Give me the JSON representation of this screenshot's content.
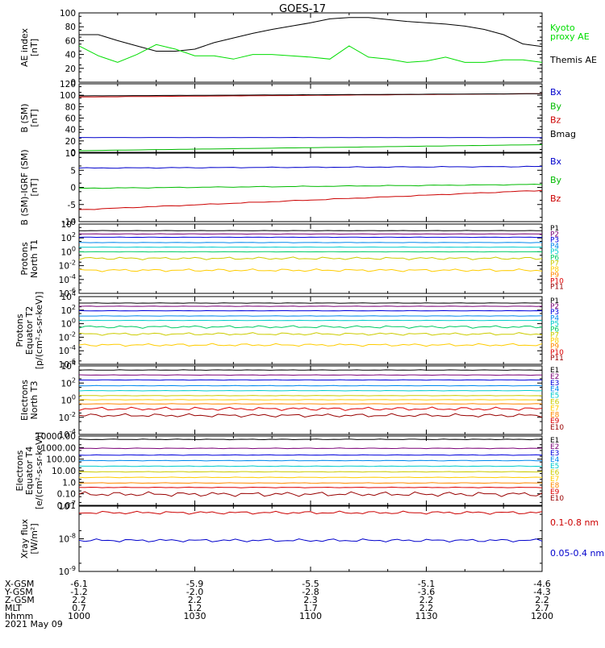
{
  "title": "GOES-17",
  "panels": [
    {
      "key": "ae",
      "ylabel": [
        "AE index",
        "[nT]"
      ],
      "ticks": [
        "0",
        "20",
        "40",
        "60",
        "80",
        "100"
      ],
      "legend": [
        {
          "label": "Kyoto",
          "color": "#00dd00"
        },
        {
          "label": "proxy AE",
          "color": "#00dd00"
        },
        {
          "label": "Themis AE",
          "color": "#000000"
        }
      ]
    },
    {
      "key": "bsm",
      "ylabel": [
        "B (SM)",
        "[nT]"
      ],
      "ticks": [
        "0",
        "20",
        "40",
        "60",
        "80",
        "100",
        "120"
      ],
      "legend": [
        {
          "label": "Bx",
          "color": "#0000cc"
        },
        {
          "label": "By",
          "color": "#00bb00"
        },
        {
          "label": "Bz",
          "color": "#cc0000"
        },
        {
          "label": "Bmag",
          "color": "#000000"
        }
      ]
    },
    {
      "key": "bigrf",
      "ylabel": [
        "B (SM)-IGRF (SM)",
        "[nT]"
      ],
      "ticks": [
        "-10",
        "-5",
        "0",
        "5",
        "10"
      ],
      "legend": [
        {
          "label": "Bx",
          "color": "#0000cc"
        },
        {
          "label": "By",
          "color": "#00bb00"
        },
        {
          "label": "Bz",
          "color": "#cc0000"
        }
      ]
    },
    {
      "key": "pn",
      "ylabel": [
        "Protons",
        "North T1"
      ],
      "ticks": [
        "10^-6",
        "10^-4",
        "10^-2",
        "10^0",
        "10^2",
        "10^4"
      ],
      "legend": [
        {
          "label": "P1",
          "color": "#000000"
        },
        {
          "label": "P2",
          "color": "#7a0077"
        },
        {
          "label": "P3",
          "color": "#0000dd"
        },
        {
          "label": "P4",
          "color": "#0088ee"
        },
        {
          "label": "P5",
          "color": "#00cccc"
        },
        {
          "label": "P6",
          "color": "#00cc66"
        },
        {
          "label": "P7",
          "color": "#cccc00"
        },
        {
          "label": "P8",
          "color": "#ffcc00"
        },
        {
          "label": "P9",
          "color": "#ff8800"
        },
        {
          "label": "P10",
          "color": "#dd0000"
        },
        {
          "label": "P11",
          "color": "#990000"
        }
      ]
    },
    {
      "key": "pe",
      "ylabel": [
        "Protons",
        "Equator T2",
        "[p/(cm²-s-sr-keV)]"
      ],
      "ticks": [
        "10^-6",
        "10^-4",
        "10^-2",
        "10^0",
        "10^2",
        "10^4"
      ],
      "legend": [
        {
          "label": "P1",
          "color": "#000000"
        },
        {
          "label": "P2",
          "color": "#7a0077"
        },
        {
          "label": "P3",
          "color": "#0000dd"
        },
        {
          "label": "P4",
          "color": "#0088ee"
        },
        {
          "label": "P5",
          "color": "#00cccc"
        },
        {
          "label": "P6",
          "color": "#00cc66"
        },
        {
          "label": "P7",
          "color": "#cccc00"
        },
        {
          "label": "P8",
          "color": "#ffcc00"
        },
        {
          "label": "P9",
          "color": "#ff8800"
        },
        {
          "label": "P10",
          "color": "#dd0000"
        },
        {
          "label": "P11",
          "color": "#990000"
        }
      ]
    },
    {
      "key": "en",
      "ylabel": [
        "Electrons",
        "North T3"
      ],
      "ticks": [
        "10^-4",
        "10^-2",
        "10^0",
        "10^2",
        "10^4"
      ],
      "legend": [
        {
          "label": "E1",
          "color": "#000000"
        },
        {
          "label": "E2",
          "color": "#7a0077"
        },
        {
          "label": "E3",
          "color": "#0000dd"
        },
        {
          "label": "E4",
          "color": "#0088ee"
        },
        {
          "label": "E5",
          "color": "#00cccc"
        },
        {
          "label": "E6",
          "color": "#cccc00"
        },
        {
          "label": "E7",
          "color": "#ffcc00"
        },
        {
          "label": "E8",
          "color": "#ff8800"
        },
        {
          "label": "E9",
          "color": "#dd0000"
        },
        {
          "label": "E10",
          "color": "#990000"
        }
      ]
    },
    {
      "key": "ee",
      "ylabel": [
        "Electrons",
        "Equator T4",
        "[e/(cm²-s-sr-keV)]"
      ],
      "ticks": [
        "0.01",
        "0.10",
        "1.0",
        "10.00",
        "100.00",
        "1000.00",
        "10000.00"
      ],
      "legend": [
        {
          "label": "E1",
          "color": "#000000"
        },
        {
          "label": "E2",
          "color": "#7a0077"
        },
        {
          "label": "E3",
          "color": "#0000dd"
        },
        {
          "label": "E4",
          "color": "#0088ee"
        },
        {
          "label": "E5",
          "color": "#00cccc"
        },
        {
          "label": "E6",
          "color": "#cccc00"
        },
        {
          "label": "E7",
          "color": "#ffcc00"
        },
        {
          "label": "E8",
          "color": "#ff8800"
        },
        {
          "label": "E9",
          "color": "#dd0000"
        },
        {
          "label": "E10",
          "color": "#990000"
        }
      ]
    },
    {
      "key": "xray",
      "ylabel": [
        "Xray flux",
        "[W/m²]"
      ],
      "ticks": [
        "10^-9",
        "10^-8",
        "10^-7"
      ],
      "legend": [
        {
          "label": "0.1-0.8 nm",
          "color": "#cc0000"
        },
        {
          "label": "0.05-0.4 nm",
          "color": "#0000cc"
        }
      ]
    }
  ],
  "xaxis": {
    "row_labels": [
      "X-GSM",
      "Y-GSM",
      "Z-GSM",
      "MLT",
      "hhmm",
      "2021 May 09"
    ],
    "columns": [
      {
        "x": "-6.1",
        "y": "-1.2",
        "z": "2.2",
        "mlt": "0.7",
        "hhmm": "1000"
      },
      {
        "x": "-5.9",
        "y": "-2.0",
        "z": "2.2",
        "mlt": "1.2",
        "hhmm": "1030"
      },
      {
        "x": "-5.5",
        "y": "-2.8",
        "z": "2.3",
        "mlt": "1.7",
        "hhmm": "1100"
      },
      {
        "x": "-5.1",
        "y": "-3.6",
        "z": "2.2",
        "mlt": "2.2",
        "hhmm": "1130"
      },
      {
        "x": "-4.6",
        "y": "-4.3",
        "z": "2.2",
        "mlt": "2.7",
        "hhmm": "1200"
      }
    ]
  },
  "chart_data": [
    {
      "type": "line",
      "panel": "ae",
      "ylim": [
        0,
        105
      ],
      "x_time_range": [
        "1000",
        "1200"
      ],
      "series": [
        {
          "name": "Themis AE",
          "color": "#000000",
          "x": [
            "1000",
            "1005",
            "1010",
            "1015",
            "1020",
            "1025",
            "1030",
            "1035",
            "1040",
            "1045",
            "1050",
            "1055",
            "1100",
            "1105",
            "1110",
            "1115",
            "1120",
            "1125",
            "1130",
            "1135",
            "1140",
            "1145",
            "1150",
            "1155",
            "1200"
          ],
          "y": [
            72,
            72,
            63,
            55,
            47,
            47,
            50,
            60,
            67,
            74,
            80,
            85,
            90,
            96,
            98,
            98,
            95,
            92,
            90,
            88,
            85,
            80,
            72,
            58,
            54
          ]
        },
        {
          "name": "Kyoto proxy AE",
          "color": "#00dd00",
          "x": [
            "1000",
            "1005",
            "1010",
            "1015",
            "1020",
            "1025",
            "1030",
            "1035",
            "1040",
            "1045",
            "1050",
            "1055",
            "1100",
            "1105",
            "1110",
            "1115",
            "1120",
            "1125",
            "1130",
            "1135",
            "1140",
            "1145",
            "1150",
            "1155",
            "1200"
          ],
          "y": [
            55,
            40,
            30,
            42,
            57,
            50,
            40,
            40,
            35,
            42,
            42,
            40,
            38,
            35,
            55,
            38,
            35,
            30,
            32,
            38,
            30,
            30,
            34,
            34,
            30
          ]
        }
      ]
    },
    {
      "type": "line",
      "panel": "bsm",
      "ylim": [
        -3,
        122
      ],
      "series": [
        {
          "name": "Bz",
          "color": "#cc0000",
          "x": [
            "1000",
            "1200"
          ],
          "y": [
            98,
            104
          ]
        },
        {
          "name": "Bmag",
          "color": "#000000",
          "x": [
            "1000",
            "1200"
          ],
          "y": [
            100,
            104
          ]
        },
        {
          "name": "Bx",
          "color": "#0000cc",
          "x": [
            "1000",
            "1200"
          ],
          "y": [
            24,
            24
          ]
        },
        {
          "name": "By",
          "color": "#00bb00",
          "x": [
            "1000",
            "1200"
          ],
          "y": [
            0,
            11
          ]
        }
      ]
    },
    {
      "type": "line",
      "panel": "bigrf",
      "ylim": [
        -12,
        11
      ],
      "series": [
        {
          "name": "Bx",
          "color": "#0000cc",
          "x": [
            "1000",
            "1200"
          ],
          "y": [
            6,
            6.5
          ]
        },
        {
          "name": "By",
          "color": "#00bb00",
          "x": [
            "1000",
            "1200"
          ],
          "y": [
            -0.8,
            0.5
          ]
        },
        {
          "name": "Bz",
          "color": "#cc0000",
          "x": [
            "1000",
            "1200"
          ],
          "y": [
            -8,
            -1.5
          ]
        }
      ]
    },
    {
      "type": "line",
      "panel": "pn",
      "yscale": "log",
      "ylim_exp": [
        -6.5,
        4
      ],
      "series_exp": [
        {
          "name": "P1",
          "color": "#000000",
          "exp": 3.0
        },
        {
          "name": "P2",
          "color": "#7a0077",
          "exp": 2.5
        },
        {
          "name": "P3",
          "color": "#0000dd",
          "exp": 2.0
        },
        {
          "name": "P4",
          "color": "#0088ee",
          "exp": 1.2
        },
        {
          "name": "P5",
          "color": "#00cccc",
          "exp": 0.5
        },
        {
          "name": "P6",
          "color": "#00cc66",
          "exp": -0.2
        },
        {
          "name": "P7",
          "color": "#cccc00",
          "exp": -1.2
        },
        {
          "name": "P8",
          "color": "#ffcc00",
          "exp": -3.0
        }
      ]
    },
    {
      "type": "line",
      "panel": "pe",
      "yscale": "log",
      "ylim_exp": [
        -6.5,
        4
      ],
      "series_exp": [
        {
          "name": "P1",
          "color": "#000000",
          "exp": 3.0
        },
        {
          "name": "P2",
          "color": "#7a0077",
          "exp": 2.5
        },
        {
          "name": "P3",
          "color": "#0000dd",
          "exp": 1.8
        },
        {
          "name": "P4",
          "color": "#0088ee",
          "exp": 1.0
        },
        {
          "name": "P5",
          "color": "#00cccc",
          "exp": 0.3
        },
        {
          "name": "P6",
          "color": "#00cc66",
          "exp": -0.7
        },
        {
          "name": "P7",
          "color": "#cccc00",
          "exp": -1.8
        },
        {
          "name": "P8",
          "color": "#ffcc00",
          "exp": -3.5
        }
      ]
    },
    {
      "type": "line",
      "panel": "en",
      "yscale": "log",
      "ylim_exp": [
        -4,
        4.3
      ],
      "series_exp": [
        {
          "name": "E1",
          "color": "#000000",
          "exp": 3.8
        },
        {
          "name": "E2",
          "color": "#7a0077",
          "exp": 3.2
        },
        {
          "name": "E3",
          "color": "#0000dd",
          "exp": 2.6
        },
        {
          "name": "E4",
          "color": "#0088ee",
          "exp": 1.9
        },
        {
          "name": "E5",
          "color": "#00cccc",
          "exp": 1.3
        },
        {
          "name": "E6",
          "color": "#cccc00",
          "exp": 0.7
        },
        {
          "name": "E7",
          "color": "#ffcc00",
          "exp": 0.2
        },
        {
          "name": "E8",
          "color": "#ff8800",
          "exp": -0.3
        },
        {
          "name": "E9",
          "color": "#dd0000",
          "exp": -0.9
        },
        {
          "name": "E10",
          "color": "#990000",
          "exp": -1.7
        }
      ]
    },
    {
      "type": "line",
      "panel": "ee",
      "yscale": "log",
      "ylim_exp": [
        -2,
        4.2
      ],
      "series_exp": [
        {
          "name": "E1",
          "color": "#000000",
          "exp": 3.9
        },
        {
          "name": "E2",
          "color": "#7a0077",
          "exp": 3.1
        },
        {
          "name": "E3",
          "color": "#0000dd",
          "exp": 2.5
        },
        {
          "name": "E4",
          "color": "#0088ee",
          "exp": 2.0
        },
        {
          "name": "E5",
          "color": "#00cccc",
          "exp": 1.5
        },
        {
          "name": "E6",
          "color": "#cccc00",
          "exp": 1.0
        },
        {
          "name": "E7",
          "color": "#ffcc00",
          "exp": 0.5
        },
        {
          "name": "E8",
          "color": "#ff8800",
          "exp": 0.0
        },
        {
          "name": "E9",
          "color": "#dd0000",
          "exp": -0.4
        },
        {
          "name": "E10",
          "color": "#990000",
          "exp": -1.0
        }
      ]
    },
    {
      "type": "line",
      "panel": "xray",
      "yscale": "log",
      "ylim_exp": [
        -9,
        -7
      ],
      "series_exp": [
        {
          "name": "0.1-0.8 nm",
          "color": "#cc0000",
          "exp": -7.2
        },
        {
          "name": "0.05-0.4 nm",
          "color": "#0000cc",
          "exp": -8.05
        }
      ]
    }
  ]
}
